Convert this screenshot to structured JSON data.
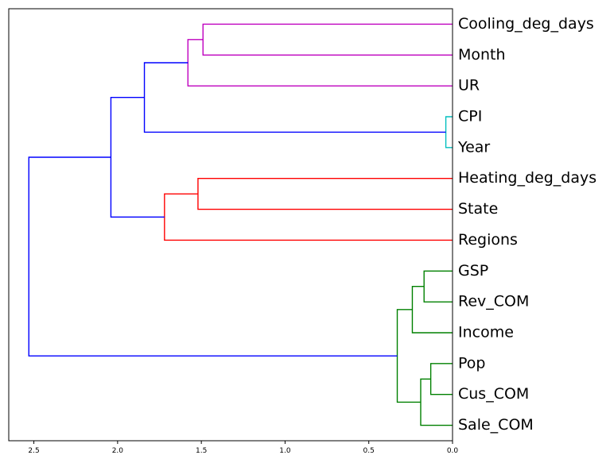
{
  "chart_data": {
    "type": "dendrogram",
    "orientation": "left",
    "title": "",
    "xlabel": "",
    "ylabel": "",
    "xlim": [
      2.65,
      0.0
    ],
    "x_ticks": [
      2.5,
      2.0,
      1.5,
      1.0,
      0.5,
      0.0
    ],
    "x_tick_labels": [
      "2.5",
      "2.0",
      "1.5",
      "1.0",
      "0.5",
      "0.0"
    ],
    "leaves": [
      "Cooling_deg_days",
      "Month",
      "UR",
      "CPI",
      "Year",
      "Heating_deg_days",
      "State",
      "Regions",
      "GSP",
      "Rev_COM",
      "Income",
      "Pop",
      "Cus_COM",
      "Sale_COM"
    ],
    "links": [
      {
        "a": 0,
        "b": 1,
        "height": 1.49,
        "color": "#bf00bf"
      },
      {
        "a": 2,
        "b": 14,
        "height": 1.58,
        "color": "#bf00bf"
      },
      {
        "a": 3,
        "b": 4,
        "height": 0.04,
        "color": "#00bfbf"
      },
      {
        "a": 15,
        "b": 16,
        "height": 1.84,
        "color": "#0000ff"
      },
      {
        "a": 5,
        "b": 6,
        "height": 1.52,
        "color": "#ff0000"
      },
      {
        "a": 7,
        "b": 18,
        "height": 1.72,
        "color": "#ff0000"
      },
      {
        "a": 17,
        "b": 19,
        "height": 2.04,
        "color": "#0000ff"
      },
      {
        "a": 8,
        "b": 9,
        "height": 0.17,
        "color": "#008000"
      },
      {
        "a": 10,
        "b": 21,
        "height": 0.24,
        "color": "#008000"
      },
      {
        "a": 11,
        "b": 12,
        "height": 0.13,
        "color": "#008000"
      },
      {
        "a": 13,
        "b": 23,
        "height": 0.19,
        "color": "#008000"
      },
      {
        "a": 22,
        "b": 24,
        "height": 0.33,
        "color": "#008000"
      },
      {
        "a": 20,
        "b": 25,
        "height": 2.53,
        "color": "#0000ff"
      }
    ]
  }
}
